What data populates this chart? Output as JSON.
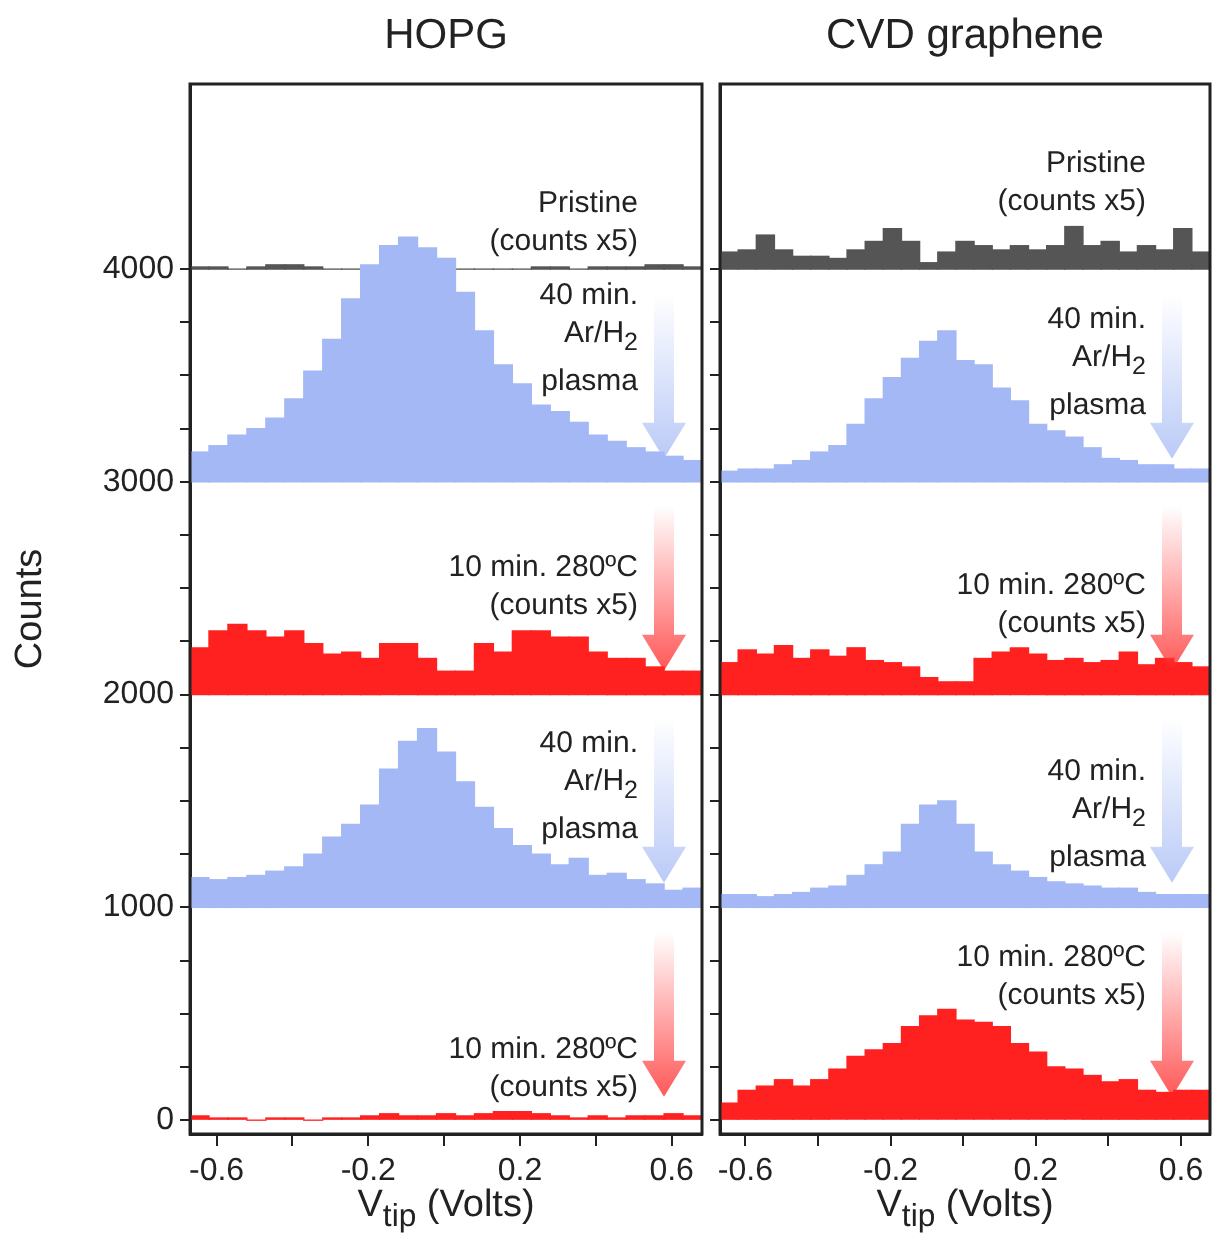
{
  "chart_data": [
    {
      "type": "histogram",
      "title": "HOPG",
      "xlabel": "V$_{tip}$ (Volts)",
      "ylabel": "Counts",
      "bins": [
        -0.67,
        -0.62,
        -0.57,
        -0.52,
        -0.47,
        -0.42,
        -0.37,
        -0.32,
        -0.27,
        -0.22,
        -0.17,
        -0.12,
        -0.07,
        -0.02,
        0.03,
        0.08,
        0.13,
        0.18,
        0.23,
        0.28,
        0.33,
        0.38,
        0.43,
        0.48,
        0.53,
        0.58,
        0.63,
        0.68
      ],
      "xlim": [
        -0.67,
        0.68
      ],
      "xticks": [
        -0.6,
        {
          "value": -0.4,
          "label": null
        },
        -0.2,
        {
          "value": 0,
          "label": null
        },
        0.2,
        {
          "value": 0.4,
          "label": null
        },
        0.6
      ],
      "ylim": [
        -65,
        4870
      ],
      "yticks": [
        0,
        {
          "value": 250,
          "label": null
        },
        {
          "value": 500,
          "label": null
        },
        {
          "value": 750,
          "label": null
        },
        1000,
        {
          "value": 1250,
          "label": null
        },
        {
          "value": 1500,
          "label": null
        },
        {
          "value": 1750,
          "label": null
        },
        2000,
        {
          "value": 2250,
          "label": null
        },
        {
          "value": 2500,
          "label": null
        },
        {
          "value": 2750,
          "label": null
        },
        3000,
        {
          "value": 3250,
          "label": null
        },
        {
          "value": 3500,
          "label": null
        },
        {
          "value": 3750,
          "label": null
        },
        4000
      ],
      "series": [
        {
          "name": "Pristine\n(counts x5)",
          "color": "#555555",
          "base": [
            4000,
            4000,
            4000,
            4000,
            4000,
            4000,
            4000,
            4000,
            4000,
            null,
            null,
            null,
            null,
            null,
            4000,
            4000,
            4000,
            4000,
            4000,
            4000,
            4000,
            4000,
            4000,
            4000,
            4000,
            4000,
            4000
          ],
          "values": [
            10,
            10,
            0,
            10,
            20,
            20,
            10,
            0,
            0,
            null,
            null,
            null,
            null,
            null,
            0,
            0,
            0,
            0,
            10,
            10,
            0,
            10,
            10,
            10,
            20,
            20,
            10
          ]
        },
        {
          "name": "40 min.\nAr/H$_{2}$\nplasma",
          "color": "#a3b8f5",
          "base": [
            3000,
            3000,
            3000,
            3000,
            3000,
            3000,
            3000,
            3000,
            3000,
            3000,
            3000,
            3000,
            3000,
            3000,
            3000,
            3000,
            3000,
            3000,
            3000,
            3000,
            3000,
            3000,
            3000,
            3000,
            3000,
            3000,
            3000
          ],
          "values": [
            140,
            170,
            220,
            250,
            300,
            390,
            520,
            670,
            860,
            1020,
            1110,
            1150,
            1100,
            1050,
            890,
            710,
            550,
            460,
            360,
            330,
            280,
            220,
            190,
            160,
            140,
            120,
            100
          ]
        },
        {
          "name": "10 min. 280ºC\n(counts x5)",
          "color": "#ff2020",
          "base": [
            2000,
            2000,
            2000,
            2000,
            2000,
            2000,
            2000,
            2000,
            2000,
            2000,
            2000,
            2000,
            2000,
            2000,
            2000,
            2000,
            2000,
            2000,
            2000,
            2000,
            2000,
            2000,
            2000,
            2000,
            2000,
            2000,
            2000
          ],
          "values": [
            220,
            300,
            330,
            300,
            270,
            300,
            240,
            190,
            200,
            170,
            240,
            240,
            170,
            110,
            110,
            240,
            200,
            300,
            300,
            270,
            270,
            200,
            170,
            170,
            130,
            110,
            110
          ]
        },
        {
          "name": "40 min.\nAr/H$_{2}$\nplasma",
          "color": "#a3b8f5",
          "base": [
            1000,
            1000,
            1000,
            1000,
            1000,
            1000,
            1000,
            1000,
            1000,
            1000,
            1000,
            1000,
            1000,
            1000,
            1000,
            1000,
            1000,
            1000,
            1000,
            1000,
            1000,
            1000,
            1000,
            1000,
            1000,
            1000,
            1000
          ],
          "values": [
            140,
            130,
            140,
            150,
            170,
            190,
            250,
            330,
            390,
            480,
            650,
            780,
            840,
            730,
            590,
            470,
            370,
            290,
            250,
            200,
            230,
            150,
            160,
            130,
            110,
            80,
            90
          ]
        },
        {
          "name": "10 min. 280ºC\n(counts x5)",
          "color": "#ff2020",
          "base": [
            0,
            0,
            0,
            0,
            0,
            0,
            0,
            0,
            0,
            0,
            0,
            0,
            0,
            0,
            0,
            0,
            0,
            0,
            0,
            0,
            0,
            0,
            0,
            0,
            0,
            0,
            0
          ],
          "values": [
            20,
            10,
            10,
            0,
            10,
            10,
            0,
            10,
            10,
            20,
            30,
            20,
            20,
            30,
            20,
            30,
            40,
            40,
            30,
            20,
            10,
            20,
            10,
            20,
            20,
            30,
            20
          ]
        }
      ]
    },
    {
      "type": "histogram",
      "title": "CVD graphene",
      "xlabel": "V$_{tip}$ (Volts)",
      "tick_labels": "x",
      "bins": [
        -0.67,
        -0.62,
        -0.57,
        -0.52,
        -0.47,
        -0.42,
        -0.37,
        -0.32,
        -0.27,
        -0.22,
        -0.17,
        -0.12,
        -0.07,
        -0.02,
        0.03,
        0.08,
        0.13,
        0.18,
        0.23,
        0.28,
        0.33,
        0.38,
        0.43,
        0.48,
        0.53,
        0.58,
        0.63,
        0.68
      ],
      "xlim": [
        -0.67,
        0.68
      ],
      "xticks": [
        -0.6,
        {
          "value": -0.4,
          "label": null
        },
        -0.2,
        {
          "value": 0,
          "label": null
        },
        0.2,
        {
          "value": 0.4,
          "label": null
        },
        0.6
      ],
      "ylim": [
        -65,
        4870
      ],
      "yticks": [
        0,
        {
          "value": 250,
          "label": null
        },
        {
          "value": 500,
          "label": null
        },
        {
          "value": 750,
          "label": null
        },
        1000,
        {
          "value": 1250,
          "label": null
        },
        {
          "value": 1500,
          "label": null
        },
        {
          "value": 1750,
          "label": null
        },
        2000,
        {
          "value": 2250,
          "label": null
        },
        {
          "value": 2500,
          "label": null
        },
        {
          "value": 2750,
          "label": null
        },
        3000,
        {
          "value": 3250,
          "label": null
        },
        {
          "value": 3500,
          "label": null
        },
        {
          "value": 3750,
          "label": null
        },
        4000
      ],
      "series": [
        {
          "name": "Pristine\n(counts x5)",
          "color": "#555555",
          "base": [
            4000,
            4000,
            4000,
            4000,
            4000,
            4000,
            4000,
            4000,
            4000,
            4000,
            4000,
            4000,
            4000,
            4000,
            4000,
            4000,
            4000,
            4000,
            4000,
            4000,
            4000,
            4000,
            4000,
            4000,
            4000,
            4000,
            4000
          ],
          "values": [
            80,
            90,
            160,
            90,
            60,
            60,
            50,
            90,
            130,
            190,
            130,
            30,
            80,
            130,
            110,
            90,
            110,
            90,
            110,
            200,
            110,
            130,
            80,
            110,
            90,
            190,
            80
          ]
        },
        {
          "name": "40 min.\nAr/H$_{2}$\nplasma",
          "color": "#a3b8f5",
          "base": [
            3000,
            3000,
            3000,
            3000,
            3000,
            3000,
            3000,
            3000,
            3000,
            3000,
            3000,
            3000,
            3000,
            3000,
            3000,
            3000,
            3000,
            3000,
            3000,
            3000,
            3000,
            3000,
            3000,
            3000,
            3000,
            3000,
            3000
          ],
          "values": [
            50,
            60,
            60,
            80,
            100,
            140,
            170,
            270,
            390,
            490,
            580,
            660,
            710,
            570,
            550,
            440,
            380,
            270,
            240,
            210,
            160,
            110,
            100,
            80,
            80,
            60,
            60
          ]
        },
        {
          "name": "10 min. 280ºC\n(counts x5)",
          "color": "#ff2020",
          "base": [
            2000,
            2000,
            2000,
            2000,
            2000,
            2000,
            2000,
            2000,
            2000,
            2000,
            2000,
            2000,
            2000,
            2000,
            2000,
            2000,
            2000,
            2000,
            2000,
            2000,
            2000,
            2000,
            2000,
            2000,
            2000,
            2000,
            2000
          ],
          "values": [
            150,
            210,
            190,
            230,
            170,
            210,
            180,
            220,
            160,
            150,
            130,
            80,
            60,
            60,
            170,
            200,
            220,
            190,
            160,
            170,
            150,
            160,
            200,
            140,
            170,
            150,
            130
          ]
        },
        {
          "name": "40 min.\nAr/H$_{2}$\nplasma",
          "color": "#a3b8f5",
          "base": [
            1000,
            1000,
            1000,
            1000,
            1000,
            1000,
            1000,
            1000,
            1000,
            1000,
            1000,
            1000,
            1000,
            1000,
            1000,
            1000,
            1000,
            1000,
            1000,
            1000,
            1000,
            1000,
            1000,
            1000,
            1000,
            1000,
            1000
          ],
          "values": [
            60,
            60,
            50,
            60,
            70,
            90,
            100,
            150,
            200,
            260,
            390,
            480,
            500,
            390,
            260,
            200,
            170,
            140,
            120,
            110,
            100,
            90,
            90,
            70,
            60,
            60,
            60
          ]
        },
        {
          "name": "10 min. 280ºC\n(counts x5)",
          "color": "#ff2020",
          "base": [
            0,
            0,
            0,
            0,
            0,
            0,
            0,
            0,
            0,
            0,
            0,
            0,
            0,
            0,
            0,
            0,
            0,
            0,
            0,
            0,
            0,
            0,
            0,
            0,
            0,
            0,
            0
          ],
          "values": [
            80,
            140,
            160,
            190,
            160,
            190,
            240,
            300,
            330,
            360,
            440,
            490,
            520,
            470,
            460,
            440,
            360,
            320,
            250,
            240,
            210,
            180,
            190,
            140,
            130,
            140,
            140
          ]
        }
      ]
    }
  ]
}
